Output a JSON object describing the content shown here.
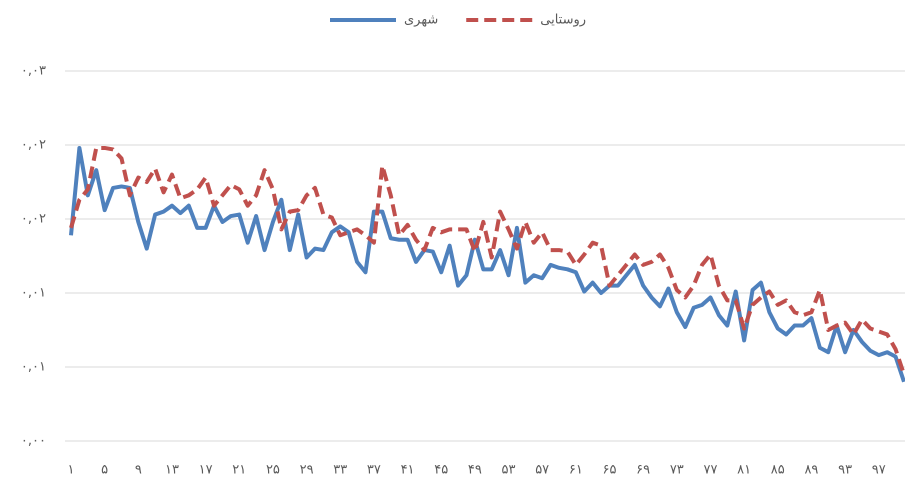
{
  "chart_data": {
    "type": "line",
    "categories": [
      "۱",
      null,
      null,
      null,
      "۵",
      null,
      null,
      null,
      "۹",
      null,
      null,
      null,
      "۱۳",
      null,
      null,
      null,
      "۱۷",
      null,
      null,
      null,
      "۲۱",
      null,
      null,
      null,
      "۲۵",
      null,
      null,
      null,
      "۲۹",
      null,
      null,
      null,
      "۳۳",
      null,
      null,
      null,
      "۳۷",
      null,
      null,
      null,
      "۴۱",
      null,
      null,
      null,
      "۴۵",
      null,
      null,
      null,
      "۴۹",
      null,
      null,
      null,
      "۵۳",
      null,
      null,
      null,
      "۵۷",
      null,
      null,
      null,
      "۶۱",
      null,
      null,
      null,
      "۶۵",
      null,
      null,
      null,
      "۶۹",
      null,
      null,
      null,
      "۷۳",
      null,
      null,
      null,
      "۷۷",
      null,
      null,
      null,
      "۸۱",
      null,
      null,
      null,
      "۸۵",
      null,
      null,
      null,
      "۸۹",
      null,
      null,
      null,
      "۹۳",
      null,
      null,
      null,
      "۹۷",
      null,
      null,
      null
    ],
    "series": [
      {
        "name": "شهری",
        "color": "#4f81bd",
        "dashed": false,
        "values": [
          0.0139,
          0.0198,
          0.0166,
          0.0183,
          0.0156,
          0.0171,
          0.0172,
          0.0171,
          0.0148,
          0.013,
          0.0153,
          0.0155,
          0.0159,
          0.0154,
          0.0159,
          0.0144,
          0.0144,
          0.0159,
          0.0148,
          0.0152,
          0.0153,
          0.0134,
          0.0152,
          0.0129,
          0.0148,
          0.0163,
          0.0129,
          0.0153,
          0.0124,
          0.013,
          0.0129,
          0.0141,
          0.0145,
          0.0141,
          0.0121,
          0.0114,
          0.0155,
          0.0155,
          0.0137,
          0.0136,
          0.0136,
          0.0121,
          0.0129,
          0.0128,
          0.0114,
          0.0132,
          0.0105,
          0.0112,
          0.0136,
          0.0116,
          0.0116,
          0.0129,
          0.0112,
          0.0144,
          0.0107,
          0.0112,
          0.011,
          0.0119,
          0.0117,
          0.0116,
          0.0114,
          0.0101,
          0.0107,
          0.01,
          0.0105,
          0.0105,
          0.0112,
          0.0119,
          0.0105,
          0.0097,
          0.0091,
          0.0103,
          0.0087,
          0.0077,
          0.009,
          0.0092,
          0.0097,
          0.0085,
          0.0078,
          0.0101,
          0.0068,
          0.0102,
          0.0107,
          0.0087,
          0.0076,
          0.0072,
          0.0078,
          0.0078,
          0.0083,
          0.0063,
          0.006,
          0.0078,
          0.006,
          0.0075,
          0.0067,
          0.0061,
          0.0058,
          0.006,
          0.0057,
          0.004
        ]
      },
      {
        "name": "روستایی",
        "color": "#c0504d",
        "dashed": true,
        "values": [
          0.0144,
          0.0163,
          0.017,
          0.0198,
          0.0198,
          0.0197,
          0.0191,
          0.0166,
          0.0178,
          0.0175,
          0.0184,
          0.0168,
          0.018,
          0.0164,
          0.0166,
          0.017,
          0.0178,
          0.0159,
          0.0166,
          0.0173,
          0.017,
          0.0159,
          0.0166,
          0.0183,
          0.017,
          0.0143,
          0.0155,
          0.0156,
          0.0166,
          0.0171,
          0.0153,
          0.0151,
          0.0139,
          0.0141,
          0.0143,
          0.0139,
          0.0134,
          0.0186,
          0.0166,
          0.0139,
          0.0146,
          0.0136,
          0.0129,
          0.0144,
          0.0141,
          0.0143,
          0.0143,
          0.0143,
          0.0128,
          0.0148,
          0.0124,
          0.0155,
          0.0143,
          0.013,
          0.0148,
          0.0134,
          0.0141,
          0.0129,
          0.0129,
          0.0128,
          0.0119,
          0.0126,
          0.0134,
          0.0132,
          0.0105,
          0.0112,
          0.0119,
          0.0126,
          0.0119,
          0.0121,
          0.0126,
          0.0117,
          0.0102,
          0.0097,
          0.0105,
          0.0119,
          0.0126,
          0.0105,
          0.0095,
          0.0095,
          0.0076,
          0.0092,
          0.0097,
          0.0101,
          0.0092,
          0.0095,
          0.0087,
          0.0085,
          0.0087,
          0.0102,
          0.0075,
          0.0078,
          0.008,
          0.0072,
          0.0082,
          0.0076,
          0.0074,
          0.0072,
          0.0062,
          0.0045
        ]
      }
    ],
    "ylim": [
      0,
      0.025
    ],
    "yticks": [
      {
        "value": 0,
        "label": "۰,۰۰"
      },
      {
        "value": 0.005,
        "label": "۰,۰۱"
      },
      {
        "value": 0.01,
        "label": "۰,۰۱"
      },
      {
        "value": 0.015,
        "label": "۰,۰۲"
      },
      {
        "value": 0.02,
        "label": "۰,۰۲"
      },
      {
        "value": 0.025,
        "label": "۰,۰۳"
      }
    ],
    "grid": true,
    "legend": "top"
  }
}
